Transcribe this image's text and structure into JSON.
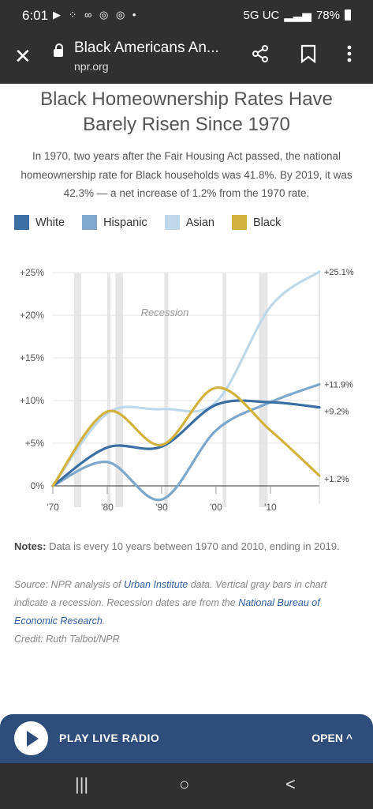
{
  "status_bar": {
    "time": "6:01",
    "notifications": "▶ ⁘ ∞ ◎ ◎ •",
    "network": "5G UC",
    "battery": "78%"
  },
  "browser": {
    "page_title": "Black Americans An...",
    "domain": "npr.org",
    "close_icon": "close-icon",
    "share_icon": "share-icon",
    "bookmark_icon": "bookmark-icon",
    "menu_icon": "more-vert-icon"
  },
  "article": {
    "headline": "Black Homeownership Rates Have Barely Risen Since 1970",
    "lede": "In 1970, two years after the Fair Housing Act passed, the national homeownership rate for Black households was 41.8%. By 2019, it was 42.3% — a net increase of 1.2% from the 1970 rate.",
    "notes_label": "Notes:",
    "notes_text": " Data is every 10 years between 1970 and 2010, ending in 2019.",
    "source_pre": "Source: NPR analysis of ",
    "source_link1": "Urban Institute",
    "source_mid": " data. Vertical gray bars in chart indicate a recession. Recession dates are from the ",
    "source_link2": "National Bureau of Economic Research",
    "source_post": ".",
    "credit": "Credit: Ruth Talbot/NPR"
  },
  "chart_data": {
    "type": "line",
    "title": "Black Homeownership Rates Have Barely Risen Since 1970",
    "annotation": "Recession",
    "x": [
      1970,
      1980,
      1990,
      2000,
      2010,
      2019
    ],
    "x_tick_labels": [
      "'70",
      "'80",
      "'90",
      "'00",
      "'10"
    ],
    "x_ticks": [
      1970,
      1980,
      1990,
      2000,
      2010
    ],
    "y_tick_labels": [
      "0%",
      "+5%",
      "+10%",
      "+15%",
      "+20%",
      "+25%"
    ],
    "y_ticks": [
      0,
      5,
      10,
      15,
      20,
      25
    ],
    "ylim": [
      -2,
      26
    ],
    "xlim": [
      1970,
      2019
    ],
    "grid": true,
    "legend_position": "top-left",
    "recessions": [
      [
        1973.9,
        1975.2
      ],
      [
        1980.0,
        1980.5
      ],
      [
        1981.5,
        1982.9
      ],
      [
        1990.5,
        1991.2
      ],
      [
        2001.2,
        2001.9
      ],
      [
        2007.9,
        2009.5
      ]
    ],
    "series": [
      {
        "name": "White",
        "color": "#3b6fa3",
        "values": [
          0,
          4.5,
          4.6,
          9.5,
          9.8,
          9.2
        ],
        "end_label": "+9.2%"
      },
      {
        "name": "Hispanic",
        "color": "#7da7cb",
        "values": [
          0,
          2.8,
          -1.6,
          6.5,
          9.8,
          11.9
        ],
        "end_label": "+11.9%"
      },
      {
        "name": "Asian",
        "color": "#bed8ea",
        "values": [
          0,
          8.5,
          9.0,
          9.8,
          21.0,
          25.1
        ],
        "end_label": "+25.1%"
      },
      {
        "name": "Black",
        "color": "#d2b23c",
        "values": [
          0,
          8.7,
          4.8,
          11.5,
          6.5,
          1.2
        ],
        "end_label": "+1.2%"
      }
    ]
  },
  "player": {
    "play_label": "PLAY LIVE RADIO",
    "open_label": "OPEN ^"
  },
  "navbar": {
    "recents": "|||",
    "home": "○",
    "back": "<"
  }
}
